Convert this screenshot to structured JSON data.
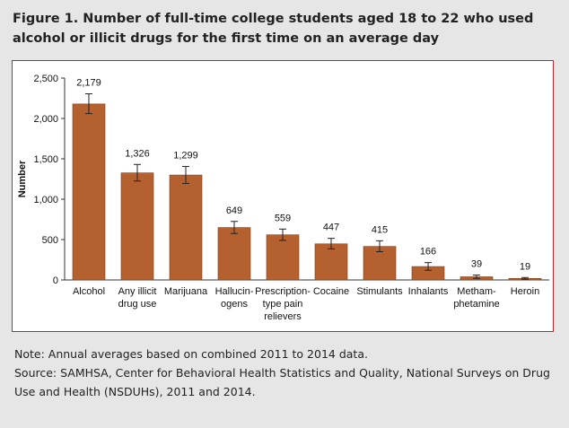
{
  "figure": {
    "title": "Figure 1. Number of full-time college students aged 18 to 22 who used alcohol or illicit drugs for the first time on an average day",
    "note": "Note: Annual averages based on combined 2011 to 2014 data.",
    "source": "Source: SAMHSA, Center for Behavioral Health Statistics and Quality, National Surveys on Drug Use and Health (NSDUHs), 2011 and 2014."
  },
  "colors": {
    "bar": "#b5602f",
    "bar_edge": "#7f3d17",
    "panel_border": "#c0272d",
    "background": "#e6e6e6"
  },
  "chart_data": {
    "type": "bar",
    "title": "",
    "xlabel": "",
    "ylabel": "Number",
    "ylim": [
      0,
      2500
    ],
    "yticks": [
      0,
      500,
      1000,
      1500,
      2000,
      2500
    ],
    "ytick_labels": [
      "0",
      "500",
      "1,000",
      "1,500",
      "2,000",
      "2,500"
    ],
    "grid": false,
    "categories": [
      [
        "Alcohol"
      ],
      [
        "Any illicit",
        "drug use"
      ],
      [
        "Marijuana"
      ],
      [
        "Hallucin-",
        "ogens"
      ],
      [
        "Prescription-",
        "type pain",
        "relievers"
      ],
      [
        "Cocaine"
      ],
      [
        "Stimulants"
      ],
      [
        "Inhalants"
      ],
      [
        "Metham-",
        "phetamine"
      ],
      [
        "Heroin"
      ]
    ],
    "values": [
      2179,
      1326,
      1299,
      649,
      559,
      447,
      415,
      166,
      39,
      19
    ],
    "value_labels": [
      "2,179",
      "1,326",
      "1,299",
      "649",
      "559",
      "447",
      "415",
      "166",
      "39",
      "19"
    ],
    "error_bars": [
      [
        2060,
        2305
      ],
      [
        1225,
        1430
      ],
      [
        1195,
        1405
      ],
      [
        575,
        725
      ],
      [
        490,
        630
      ],
      [
        385,
        515
      ],
      [
        350,
        485
      ],
      [
        120,
        215
      ],
      [
        20,
        60
      ],
      [
        8,
        30
      ]
    ]
  }
}
